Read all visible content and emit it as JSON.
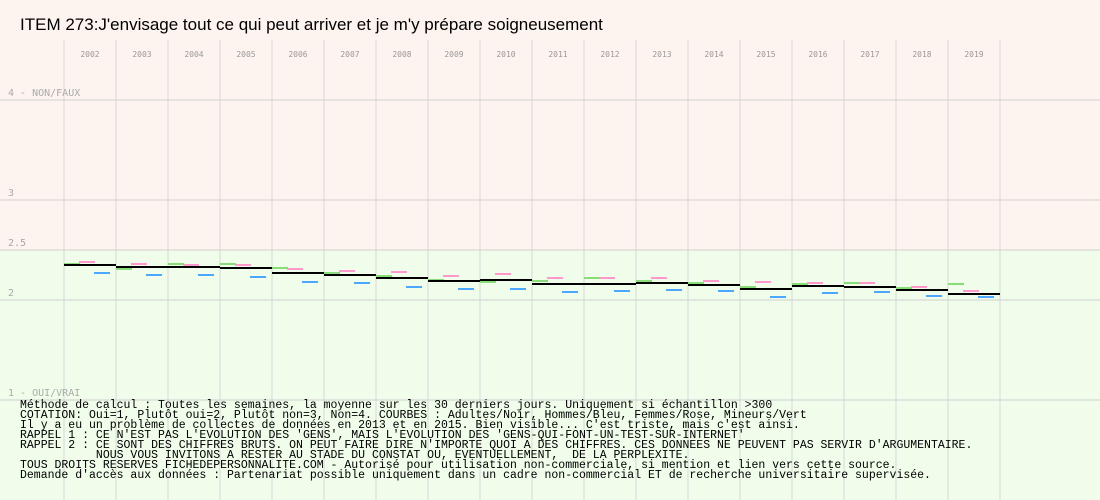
{
  "chart_data": {
    "type": "line",
    "title": "ITEM 273:J'envisage tout ce qui peut arriver et je m'y prépare soigneusement",
    "categories": [
      "2002",
      "2003",
      "2004",
      "2005",
      "2006",
      "2007",
      "2008",
      "2009",
      "2010",
      "2011",
      "2012",
      "2013",
      "2014",
      "2015",
      "2016",
      "2017",
      "2018",
      "2019"
    ],
    "y_ticks": [
      {
        "value": 4,
        "label": "4 - NON/FAUX"
      },
      {
        "value": 3,
        "label": "3"
      },
      {
        "value": 2.5,
        "label": "2.5"
      },
      {
        "value": 2,
        "label": "2"
      },
      {
        "value": 1,
        "label": "1 - OUI/VRAI"
      }
    ],
    "ylim": [
      1,
      4
    ],
    "grid": true,
    "zones": [
      {
        "from": 2.5,
        "to": 4,
        "color": "#fdf3ef"
      },
      {
        "from": 1,
        "to": 2.5,
        "color": "#effdea"
      }
    ],
    "series": [
      {
        "name": "Adultes",
        "color": "#000000",
        "values": [
          2.35,
          2.33,
          2.33,
          2.32,
          2.27,
          2.25,
          2.22,
          2.19,
          2.2,
          2.16,
          2.16,
          2.17,
          2.15,
          2.11,
          2.14,
          2.13,
          2.1,
          2.06
        ]
      },
      {
        "name": "Hommes",
        "color": "#4da6ff",
        "values": [
          2.27,
          2.25,
          2.25,
          2.23,
          2.18,
          2.17,
          2.13,
          2.11,
          2.11,
          2.08,
          2.09,
          2.1,
          2.09,
          2.03,
          2.07,
          2.08,
          2.04,
          2.03
        ]
      },
      {
        "name": "Femmes",
        "color": "#ff99cc",
        "values": [
          2.38,
          2.36,
          2.35,
          2.35,
          2.31,
          2.29,
          2.28,
          2.24,
          2.26,
          2.22,
          2.22,
          2.22,
          2.19,
          2.18,
          2.17,
          2.17,
          2.13,
          2.09
        ]
      },
      {
        "name": "Mineurs",
        "color": "#88dd77",
        "values": [
          2.36,
          2.31,
          2.36,
          2.36,
          2.32,
          2.27,
          2.24,
          2.2,
          2.18,
          2.19,
          2.22,
          2.19,
          2.17,
          2.13,
          2.16,
          2.17,
          2.12,
          2.16
        ]
      }
    ]
  },
  "notes": [
    "Méthode de calcul : Toutes les semaines, la moyenne sur les 30 derniers jours. Uniquement si échantillon >300",
    "COTATION: Oui=1, Plutôt oui=2, Plutôt non=3, Non=4. COURBES : Adultes/Noir, Hommes/Bleu, Femmes/Rose, Mineurs/Vert",
    "Il y a eu un problème de collectes de données en 2013 et en 2015. Bien visible... C'est triste, mais c'est ainsi.",
    "RAPPEL 1 : CE N'EST PAS L'EVOLUTION DES 'GENS', MAIS L'EVOLUTION DES 'GENS-QUI-FONT-UN-TEST-SUR-INTERNET'",
    "RAPPEL 2 : CE SONT DES CHIFFRES BRUTS. ON PEUT FAIRE DIRE N'IMPORTE QUOI A DES CHIFFRES. CES DONNEES NE PEUVENT PAS SERVIR D'ARGUMENTAIRE.",
    "           NOUS VOUS INVITONS A RESTER AU STADE DU CONSTAT OU, EVENTUELLEMENT,  DE LA PERPLEXITE.",
    "TOUS DROITS RESERVES FICHEDEPERSONNALITE.COM - Autorisé pour utilisation non-commerciale, si mention et lien vers cette source.",
    "Demande d'accès aux données : Partenariat possible uniquement dans un cadre non-commercial ET de recherche universitaire supervisée."
  ]
}
